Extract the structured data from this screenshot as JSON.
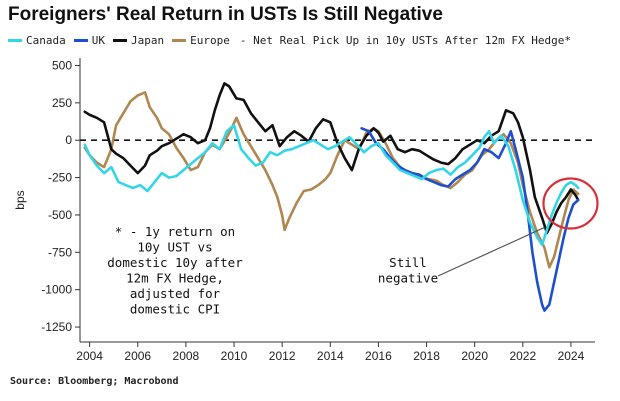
{
  "title": "Foreigners' Real Return in USTs Is Still Negative",
  "legend": {
    "items": [
      {
        "name": "Canada",
        "color": "#33d6e8"
      },
      {
        "name": "UK",
        "color": "#1f4fd1"
      },
      {
        "name": "Japan",
        "color": "#111111"
      },
      {
        "name": "Europe",
        "color": "#b0874f"
      }
    ],
    "note": "- Net Real Pick Up in 10y USTs After 12m FX Hedge*"
  },
  "source": "Source: Bloomberg; Macrobond",
  "chart_data": {
    "type": "line",
    "ylabel": "bps",
    "xlabel": "",
    "xlim": [
      2003.6,
      2025.0
    ],
    "ylim": [
      -1350,
      550
    ],
    "yticks": [
      500,
      250,
      0,
      -250,
      -500,
      -750,
      -1000,
      -1250
    ],
    "xticks": [
      2004,
      2006,
      2008,
      2010,
      2012,
      2014,
      2016,
      2018,
      2020,
      2022,
      2024
    ],
    "zero_line": "dashed",
    "grid": false,
    "legend_position": "top",
    "footnote": [
      "* - 1y return on",
      "10y UST vs",
      "domestic 10y after",
      "12m FX Hedge,",
      "adjusted for",
      "domestic CPI"
    ],
    "callout": {
      "lines": [
        "Still",
        "negative"
      ],
      "target": [
        2023.4,
        -450
      ],
      "highlight": "red ellipse"
    },
    "series": [
      {
        "name": "Europe",
        "color": "#b0874f",
        "points": [
          [
            2003.8,
            -50
          ],
          [
            2004.0,
            -100
          ],
          [
            2004.3,
            -150
          ],
          [
            2004.6,
            -180
          ],
          [
            2004.9,
            -60
          ],
          [
            2005.1,
            100
          ],
          [
            2005.4,
            180
          ],
          [
            2005.7,
            260
          ],
          [
            2006.0,
            300
          ],
          [
            2006.3,
            320
          ],
          [
            2006.5,
            220
          ],
          [
            2006.8,
            150
          ],
          [
            2007.0,
            80
          ],
          [
            2007.3,
            40
          ],
          [
            2007.6,
            -50
          ],
          [
            2007.9,
            -120
          ],
          [
            2008.2,
            -200
          ],
          [
            2008.5,
            -180
          ],
          [
            2008.8,
            -80
          ],
          [
            2009.1,
            -30
          ],
          [
            2009.4,
            -60
          ],
          [
            2009.7,
            20
          ],
          [
            2009.9,
            80
          ],
          [
            2010.1,
            150
          ],
          [
            2010.4,
            40
          ],
          [
            2010.7,
            -40
          ],
          [
            2011.0,
            -120
          ],
          [
            2011.3,
            -200
          ],
          [
            2011.6,
            -300
          ],
          [
            2011.8,
            -380
          ],
          [
            2012.0,
            -500
          ],
          [
            2012.1,
            -600
          ],
          [
            2012.3,
            -520
          ],
          [
            2012.6,
            -420
          ],
          [
            2012.9,
            -340
          ],
          [
            2013.2,
            -330
          ],
          [
            2013.5,
            -300
          ],
          [
            2013.8,
            -260
          ],
          [
            2014.0,
            -220
          ],
          [
            2014.3,
            -100
          ],
          [
            2014.6,
            0
          ],
          [
            2014.9,
            -30
          ],
          [
            2015.2,
            -60
          ],
          [
            2015.5,
            50
          ],
          [
            2015.8,
            80
          ],
          [
            2016.0,
            60
          ],
          [
            2016.3,
            -20
          ],
          [
            2016.6,
            -120
          ],
          [
            2016.9,
            -180
          ],
          [
            2017.2,
            -220
          ],
          [
            2017.5,
            -230
          ],
          [
            2017.8,
            -250
          ],
          [
            2018.1,
            -260
          ],
          [
            2018.4,
            -270
          ],
          [
            2018.7,
            -300
          ],
          [
            2019.0,
            -320
          ],
          [
            2019.3,
            -280
          ],
          [
            2019.6,
            -230
          ],
          [
            2019.9,
            -200
          ],
          [
            2020.1,
            -150
          ],
          [
            2020.3,
            -100
          ],
          [
            2020.6,
            -60
          ],
          [
            2020.9,
            0
          ],
          [
            2021.2,
            40
          ],
          [
            2021.5,
            -20
          ],
          [
            2021.8,
            -150
          ],
          [
            2022.0,
            -300
          ],
          [
            2022.3,
            -480
          ],
          [
            2022.6,
            -620
          ],
          [
            2022.9,
            -720
          ],
          [
            2023.1,
            -850
          ],
          [
            2023.3,
            -780
          ],
          [
            2023.5,
            -650
          ],
          [
            2023.7,
            -520
          ],
          [
            2023.9,
            -400
          ],
          [
            2024.1,
            -330
          ],
          [
            2024.3,
            -360
          ]
        ]
      },
      {
        "name": "Japan",
        "color": "#111111",
        "points": [
          [
            2003.8,
            190
          ],
          [
            2004.0,
            170
          ],
          [
            2004.3,
            150
          ],
          [
            2004.6,
            120
          ],
          [
            2004.9,
            -60
          ],
          [
            2005.1,
            -90
          ],
          [
            2005.4,
            -120
          ],
          [
            2005.7,
            -170
          ],
          [
            2006.0,
            -220
          ],
          [
            2006.3,
            -170
          ],
          [
            2006.5,
            -100
          ],
          [
            2006.8,
            -70
          ],
          [
            2007.0,
            -40
          ],
          [
            2007.3,
            -20
          ],
          [
            2007.6,
            10
          ],
          [
            2007.9,
            40
          ],
          [
            2008.2,
            20
          ],
          [
            2008.5,
            -20
          ],
          [
            2008.8,
            0
          ],
          [
            2009.0,
            80
          ],
          [
            2009.2,
            200
          ],
          [
            2009.4,
            300
          ],
          [
            2009.6,
            380
          ],
          [
            2009.8,
            360
          ],
          [
            2010.1,
            280
          ],
          [
            2010.4,
            270
          ],
          [
            2010.7,
            180
          ],
          [
            2011.0,
            120
          ],
          [
            2011.3,
            60
          ],
          [
            2011.6,
            100
          ],
          [
            2011.9,
            -40
          ],
          [
            2012.2,
            20
          ],
          [
            2012.5,
            60
          ],
          [
            2012.8,
            30
          ],
          [
            2013.1,
            -10
          ],
          [
            2013.4,
            80
          ],
          [
            2013.7,
            140
          ],
          [
            2014.0,
            120
          ],
          [
            2014.3,
            -20
          ],
          [
            2014.6,
            -120
          ],
          [
            2014.9,
            -200
          ],
          [
            2015.2,
            -50
          ],
          [
            2015.5,
            30
          ],
          [
            2015.8,
            80
          ],
          [
            2016.0,
            50
          ],
          [
            2016.2,
            -10
          ],
          [
            2016.5,
            30
          ],
          [
            2016.8,
            -60
          ],
          [
            2017.1,
            -80
          ],
          [
            2017.4,
            -60
          ],
          [
            2017.7,
            -70
          ],
          [
            2018.0,
            -100
          ],
          [
            2018.3,
            -130
          ],
          [
            2018.6,
            -150
          ],
          [
            2018.9,
            -160
          ],
          [
            2019.2,
            -120
          ],
          [
            2019.5,
            -60
          ],
          [
            2019.8,
            -30
          ],
          [
            2020.1,
            0
          ],
          [
            2020.4,
            -20
          ],
          [
            2020.7,
            30
          ],
          [
            2021.0,
            60
          ],
          [
            2021.3,
            200
          ],
          [
            2021.6,
            180
          ],
          [
            2021.8,
            120
          ],
          [
            2022.0,
            20
          ],
          [
            2022.3,
            -200
          ],
          [
            2022.5,
            -380
          ],
          [
            2022.8,
            -520
          ],
          [
            2023.0,
            -620
          ],
          [
            2023.2,
            -560
          ],
          [
            2023.4,
            -480
          ],
          [
            2023.6,
            -420
          ],
          [
            2023.8,
            -380
          ],
          [
            2024.0,
            -330
          ],
          [
            2024.2,
            -370
          ],
          [
            2024.3,
            -400
          ]
        ]
      },
      {
        "name": "UK",
        "color": "#1f4fd1",
        "points": [
          [
            2015.3,
            80
          ],
          [
            2015.6,
            60
          ],
          [
            2015.9,
            -20
          ],
          [
            2016.2,
            -60
          ],
          [
            2016.5,
            -120
          ],
          [
            2016.8,
            -170
          ],
          [
            2017.1,
            -200
          ],
          [
            2017.4,
            -220
          ],
          [
            2017.7,
            -230
          ],
          [
            2018.0,
            -260
          ],
          [
            2018.3,
            -280
          ],
          [
            2018.6,
            -300
          ],
          [
            2018.9,
            -310
          ],
          [
            2019.2,
            -260
          ],
          [
            2019.5,
            -230
          ],
          [
            2019.8,
            -200
          ],
          [
            2020.1,
            -150
          ],
          [
            2020.4,
            -60
          ],
          [
            2020.7,
            -80
          ],
          [
            2021.0,
            -120
          ],
          [
            2021.3,
            -20
          ],
          [
            2021.5,
            60
          ],
          [
            2021.7,
            -60
          ],
          [
            2022.0,
            -250
          ],
          [
            2022.2,
            -480
          ],
          [
            2022.4,
            -750
          ],
          [
            2022.6,
            -950
          ],
          [
            2022.8,
            -1100
          ],
          [
            2022.9,
            -1140
          ],
          [
            2023.1,
            -1100
          ],
          [
            2023.3,
            -950
          ],
          [
            2023.5,
            -800
          ],
          [
            2023.7,
            -650
          ],
          [
            2023.9,
            -520
          ],
          [
            2024.1,
            -430
          ],
          [
            2024.3,
            -400
          ]
        ]
      },
      {
        "name": "Canada",
        "color": "#33d6e8",
        "points": [
          [
            2003.8,
            -30
          ],
          [
            2004.0,
            -100
          ],
          [
            2004.3,
            -170
          ],
          [
            2004.6,
            -220
          ],
          [
            2004.9,
            -180
          ],
          [
            2005.2,
            -280
          ],
          [
            2005.5,
            -300
          ],
          [
            2005.8,
            -320
          ],
          [
            2006.1,
            -300
          ],
          [
            2006.4,
            -340
          ],
          [
            2006.7,
            -280
          ],
          [
            2007.0,
            -220
          ],
          [
            2007.3,
            -250
          ],
          [
            2007.6,
            -240
          ],
          [
            2007.9,
            -200
          ],
          [
            2008.2,
            -160
          ],
          [
            2008.5,
            -120
          ],
          [
            2008.8,
            -80
          ],
          [
            2009.1,
            -20
          ],
          [
            2009.4,
            -60
          ],
          [
            2009.7,
            60
          ],
          [
            2010.0,
            100
          ],
          [
            2010.3,
            -60
          ],
          [
            2010.6,
            -120
          ],
          [
            2010.9,
            -170
          ],
          [
            2011.2,
            -150
          ],
          [
            2011.5,
            -80
          ],
          [
            2011.8,
            -100
          ],
          [
            2012.1,
            -70
          ],
          [
            2012.4,
            -60
          ],
          [
            2012.7,
            -40
          ],
          [
            2013.0,
            -20
          ],
          [
            2013.3,
            0
          ],
          [
            2013.6,
            -30
          ],
          [
            2013.9,
            -60
          ],
          [
            2014.2,
            -40
          ],
          [
            2014.5,
            -10
          ],
          [
            2014.8,
            20
          ],
          [
            2015.1,
            -30
          ],
          [
            2015.4,
            -80
          ],
          [
            2015.7,
            -40
          ],
          [
            2016.0,
            -20
          ],
          [
            2016.3,
            -100
          ],
          [
            2016.6,
            -150
          ],
          [
            2016.9,
            -200
          ],
          [
            2017.2,
            -220
          ],
          [
            2017.5,
            -240
          ],
          [
            2017.8,
            -260
          ],
          [
            2018.1,
            -220
          ],
          [
            2018.4,
            -200
          ],
          [
            2018.7,
            -190
          ],
          [
            2019.0,
            -230
          ],
          [
            2019.3,
            -180
          ],
          [
            2019.6,
            -150
          ],
          [
            2019.9,
            -100
          ],
          [
            2020.2,
            -50
          ],
          [
            2020.4,
            20
          ],
          [
            2020.6,
            60
          ],
          [
            2020.8,
            -20
          ],
          [
            2021.1,
            30
          ],
          [
            2021.4,
            -40
          ],
          [
            2021.7,
            -200
          ],
          [
            2022.0,
            -400
          ],
          [
            2022.3,
            -550
          ],
          [
            2022.6,
            -650
          ],
          [
            2022.8,
            -700
          ],
          [
            2023.0,
            -600
          ],
          [
            2023.2,
            -500
          ],
          [
            2023.4,
            -420
          ],
          [
            2023.6,
            -350
          ],
          [
            2023.8,
            -300
          ],
          [
            2024.0,
            -280
          ],
          [
            2024.2,
            -300
          ],
          [
            2024.3,
            -320
          ]
        ]
      }
    ]
  }
}
